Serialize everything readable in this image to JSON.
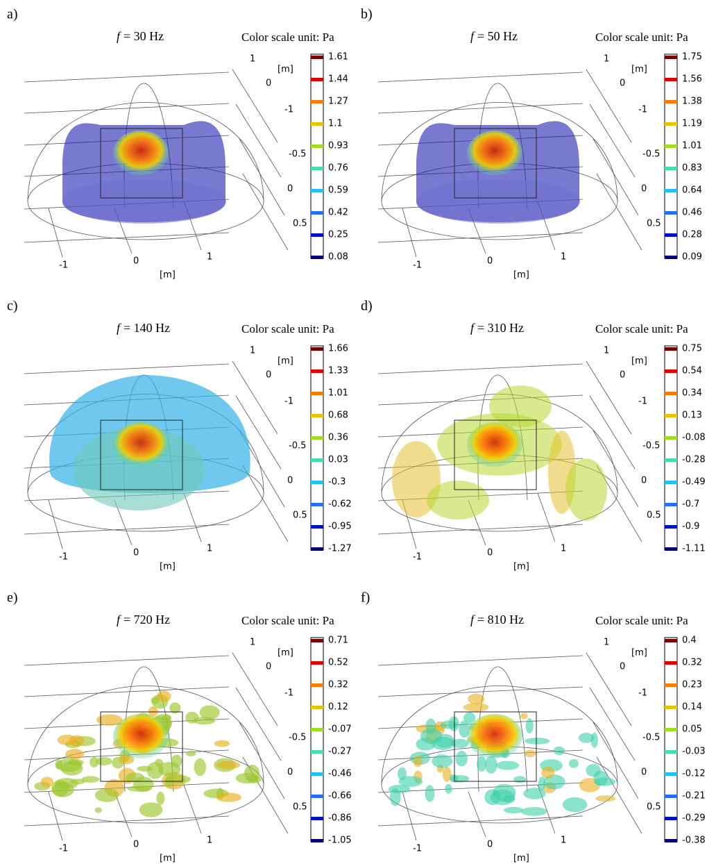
{
  "panels": [
    {
      "label": "a)",
      "symbol": "f",
      "title": "= 30 Hz",
      "unit": "Color scale unit: Pa",
      "colorbar": [
        "1.61",
        "1.44",
        "1.27",
        "1.1",
        "0.93",
        "0.76",
        "0.59",
        "0.42",
        "0.25",
        "0.08"
      ]
    },
    {
      "label": "b)",
      "symbol": "f",
      "title": "= 50 Hz",
      "unit": "Color scale unit: Pa",
      "colorbar": [
        "1.75",
        "1.56",
        "1.38",
        "1.19",
        "1.01",
        "0.83",
        "0.64",
        "0.46",
        "0.28",
        "0.09"
      ]
    },
    {
      "label": "c)",
      "symbol": "f",
      "title": "= 140 Hz",
      "unit": "Color scale unit: Pa",
      "colorbar": [
        "1.66",
        "1.33",
        "1.01",
        "0.68",
        "0.36",
        "0.03",
        "-0.3",
        "-0.62",
        "-0.95",
        "-1.27"
      ]
    },
    {
      "label": "d)",
      "symbol": "f",
      "title": "= 310 Hz",
      "unit": "Color scale unit: Pa",
      "colorbar": [
        "0.75",
        "0.54",
        "0.34",
        "0.13",
        "-0.08",
        "-0.28",
        "-0.49",
        "-0.7",
        "-0.9",
        "-1.11"
      ]
    },
    {
      "label": "e)",
      "symbol": "f",
      "title": "= 720 Hz",
      "unit": "Color scale unit: Pa",
      "colorbar": [
        "0.71",
        "0.52",
        "0.32",
        "0.12",
        "-0.07",
        "-0.27",
        "-0.46",
        "-0.66",
        "-0.86",
        "-1.05"
      ]
    },
    {
      "label": "f)",
      "symbol": "f",
      "title": "= 810 Hz",
      "unit": "Color scale unit: Pa",
      "colorbar": [
        "0.4",
        "0.32",
        "0.23",
        "0.14",
        "0.05",
        "-0.03",
        "-0.12",
        "-0.21",
        "-0.29",
        "-0.38"
      ]
    }
  ],
  "axes": {
    "z_top": "1",
    "z_unit": "[m]",
    "z_mid": "0",
    "y_a": "-1",
    "y_b": "-0.5",
    "y_c": "0",
    "y_d": "0.5",
    "x_a": "-1",
    "x_b": "0",
    "x_c": "1",
    "x_unit": "[m]"
  }
}
